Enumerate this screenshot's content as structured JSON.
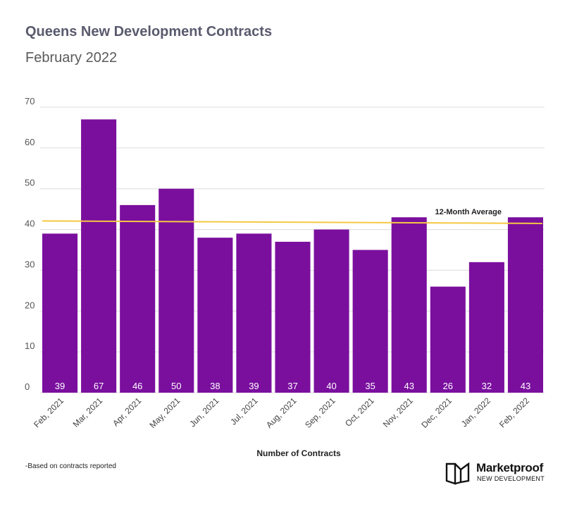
{
  "header": {
    "title": "Queens New Development Contracts",
    "subtitle": "February 2022"
  },
  "chart_data": {
    "type": "bar",
    "categories": [
      "Feb, 2021",
      "Mar, 2021",
      "Apr, 2021",
      "May, 2021",
      "Jun, 2021",
      "Jul, 2021",
      "Aug, 2021",
      "Sep, 2021",
      "Oct, 2021",
      "Nov, 2021",
      "Dec, 2021",
      "Jan, 2022",
      "Feb, 2022"
    ],
    "values": [
      39,
      67,
      46,
      50,
      38,
      39,
      37,
      40,
      35,
      43,
      26,
      32,
      43
    ],
    "data_labels": [
      "39",
      "67",
      "46",
      "50",
      "38",
      "39",
      "37",
      "40",
      "35",
      "43",
      "26",
      "32",
      "43"
    ],
    "y_ticks": [
      0,
      10,
      20,
      30,
      40,
      50,
      60,
      70
    ],
    "ylim": [
      0,
      70
    ],
    "xlabel": "Number of Contracts",
    "ylabel": "",
    "grid": true,
    "legend": "none",
    "bar_color": "#7a0f9e",
    "average_line": {
      "label": "12-Month Average",
      "start": 42.1,
      "end": 41.5,
      "color": "#f5c842"
    }
  },
  "footer": {
    "note": "-Based on contracts reported",
    "brand": "Marketproof",
    "brand_sub": "NEW DEVELOPMENT"
  }
}
